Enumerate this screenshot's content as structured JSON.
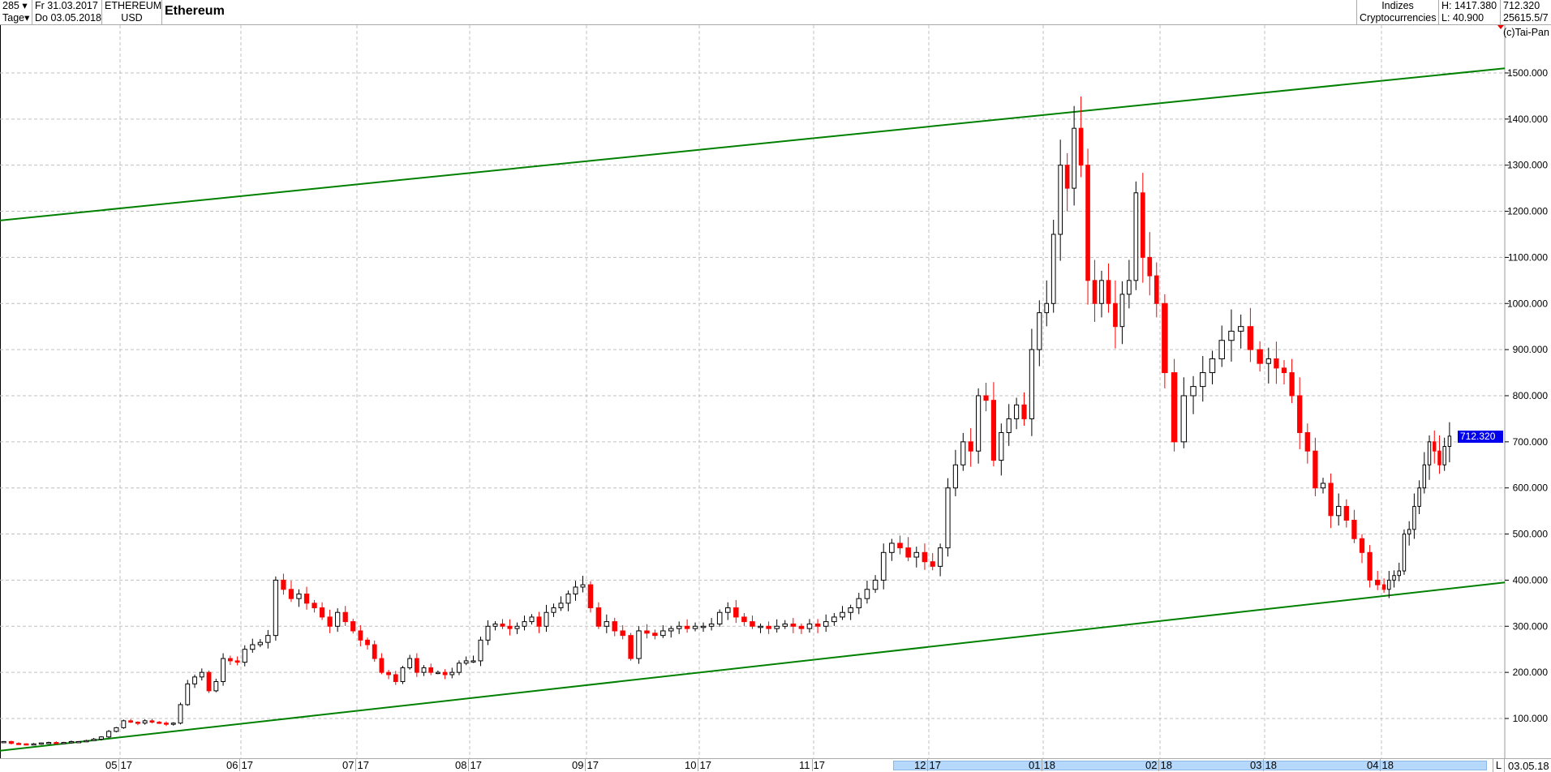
{
  "header": {
    "period_count": "285",
    "period_unit": "Tage",
    "date_from": "Fr 31.03.2017",
    "date_to": "Do 03.05.2018",
    "symbol": "ETHEREUM",
    "currency": "USD",
    "title": "Ethereum",
    "group": "Indizes",
    "subgroup": "Cryptocurrencies",
    "high": "H: 1417.380",
    "low": "L: 40.900",
    "last": "712.320",
    "volume": "25615.5/7",
    "copyright": "(c)Tai-Pan"
  },
  "bottom": {
    "mode_label": "L",
    "end_date": "03.05.18"
  },
  "chart_data": {
    "type": "candlestick",
    "title": "Ethereum",
    "ylim": [
      0,
      1600
    ],
    "y_ticks": [
      "100.000",
      "200.000",
      "300.000",
      "400.000",
      "500.000",
      "600.000",
      "700.000",
      "800.000",
      "900.000",
      "1000.000",
      "1100.000",
      "1200.000",
      "1300.000",
      "1400.000",
      "1500.000"
    ],
    "x_ticks": [
      [
        "05",
        "17"
      ],
      [
        "06",
        "17"
      ],
      [
        "07",
        "17"
      ],
      [
        "08",
        "17"
      ],
      [
        "09",
        "17"
      ],
      [
        "10",
        "17"
      ],
      [
        "11",
        "17"
      ],
      [
        "12",
        "17"
      ],
      [
        "01",
        "18"
      ],
      [
        "02",
        "18"
      ],
      [
        "03",
        "18"
      ],
      [
        "04",
        "18"
      ]
    ],
    "last_price": 712.32,
    "last_price_label": "712.320",
    "grid": true,
    "colors": {
      "up": "#ffffff",
      "down": "#ff0000",
      "trend": "#008000",
      "grid": "#c0c0c0",
      "last_label": "#0000ee",
      "highlight": "#b5d8fb"
    },
    "trendlines": [
      {
        "from": [
          "31.03.2017",
          1180
        ],
        "to": [
          "03.05.2018",
          1510
        ]
      },
      {
        "from": [
          "31.03.2017",
          30
        ],
        "to": [
          "03.05.2018",
          395
        ]
      }
    ],
    "months": [
      {
        "month": "04.17",
        "closes": [
          50,
          46,
          45,
          44,
          45,
          47,
          48,
          46,
          48,
          50,
          50,
          52,
          55,
          60,
          72,
          80
        ]
      },
      {
        "month": "05.17",
        "closes": [
          95,
          92,
          90,
          95,
          92,
          90,
          88,
          90,
          130,
          175,
          190,
          200,
          160,
          180,
          230,
          225,
          222
        ]
      },
      {
        "month": "06.17",
        "closes": [
          250,
          260,
          265,
          280,
          400,
          380,
          360,
          370,
          350,
          340,
          320,
          300,
          330,
          310,
          290
        ]
      },
      {
        "month": "07.17",
        "closes": [
          270,
          260,
          230,
          200,
          195,
          180,
          210,
          230,
          200,
          210,
          200,
          200,
          195,
          200,
          220,
          225
        ]
      },
      {
        "month": "08.17",
        "closes": [
          225,
          270,
          300,
          305,
          300,
          295,
          300,
          310,
          320,
          300,
          330,
          340,
          350,
          370,
          385,
          390
        ]
      },
      {
        "month": "09.17",
        "closes": [
          340,
          300,
          310,
          290,
          280,
          230,
          290,
          285,
          280,
          290,
          295,
          300,
          295,
          300
        ]
      },
      {
        "month": "10.17",
        "closes": [
          300,
          305,
          330,
          340,
          320,
          310,
          300,
          300,
          295,
          300,
          305,
          300,
          295,
          305
        ]
      },
      {
        "month": "11.17",
        "closes": [
          300,
          310,
          320,
          330,
          340,
          360,
          380,
          400,
          460,
          480,
          470,
          450,
          460,
          440
        ]
      },
      {
        "month": "12.17",
        "closes": [
          430,
          470,
          600,
          650,
          700,
          680,
          800,
          790,
          660,
          720,
          750,
          780,
          750,
          900,
          980
        ]
      },
      {
        "month": "01.18",
        "closes": [
          1000,
          1150,
          1300,
          1250,
          1380,
          1300,
          1050,
          1000,
          1050,
          1000,
          950,
          1020,
          1050,
          1240,
          1100,
          1060,
          1000
        ]
      },
      {
        "month": "02.18",
        "closes": [
          850,
          700,
          800,
          820,
          850,
          880,
          920,
          940,
          950,
          900,
          870
        ]
      },
      {
        "month": "03.18",
        "closes": [
          880,
          860,
          850,
          800,
          720,
          680,
          600,
          610,
          540,
          560,
          530,
          490,
          460,
          400,
          390
        ]
      },
      {
        "month": "04.18",
        "closes": [
          380,
          400,
          410,
          420,
          500,
          510,
          560,
          600,
          650,
          700,
          680,
          650,
          690,
          712.32
        ]
      }
    ]
  }
}
